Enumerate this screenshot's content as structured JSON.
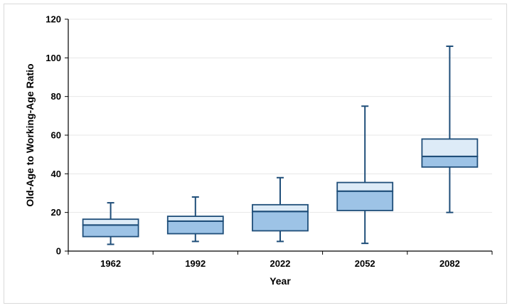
{
  "chart_data": {
    "type": "boxplot",
    "title": "",
    "xlabel": "Year",
    "ylabel": "Old-Age to Working-Age Ratio",
    "ylim": [
      0,
      120
    ],
    "yticks": [
      0,
      20,
      40,
      60,
      80,
      100,
      120
    ],
    "grid": true,
    "categories": [
      "1962",
      "1992",
      "2022",
      "2052",
      "2082"
    ],
    "boxes": [
      {
        "min": 3.5,
        "q1": 7.5,
        "median": 13.5,
        "q3": 16.5,
        "max": 25
      },
      {
        "min": 5,
        "q1": 9,
        "median": 15.5,
        "q3": 18,
        "max": 28
      },
      {
        "min": 5,
        "q1": 10.5,
        "median": 20.5,
        "q3": 24,
        "max": 38
      },
      {
        "min": 4,
        "q1": 21,
        "median": 31,
        "q3": 35.5,
        "max": 75
      },
      {
        "min": 20,
        "q1": 43.5,
        "median": 49,
        "q3": 58,
        "max": 106
      }
    ],
    "colors": {
      "lower_box": "#9dc3e6",
      "upper_box": "#ddebf7",
      "outline": "#1f4e79",
      "gridline": "#e7e7e7"
    }
  }
}
